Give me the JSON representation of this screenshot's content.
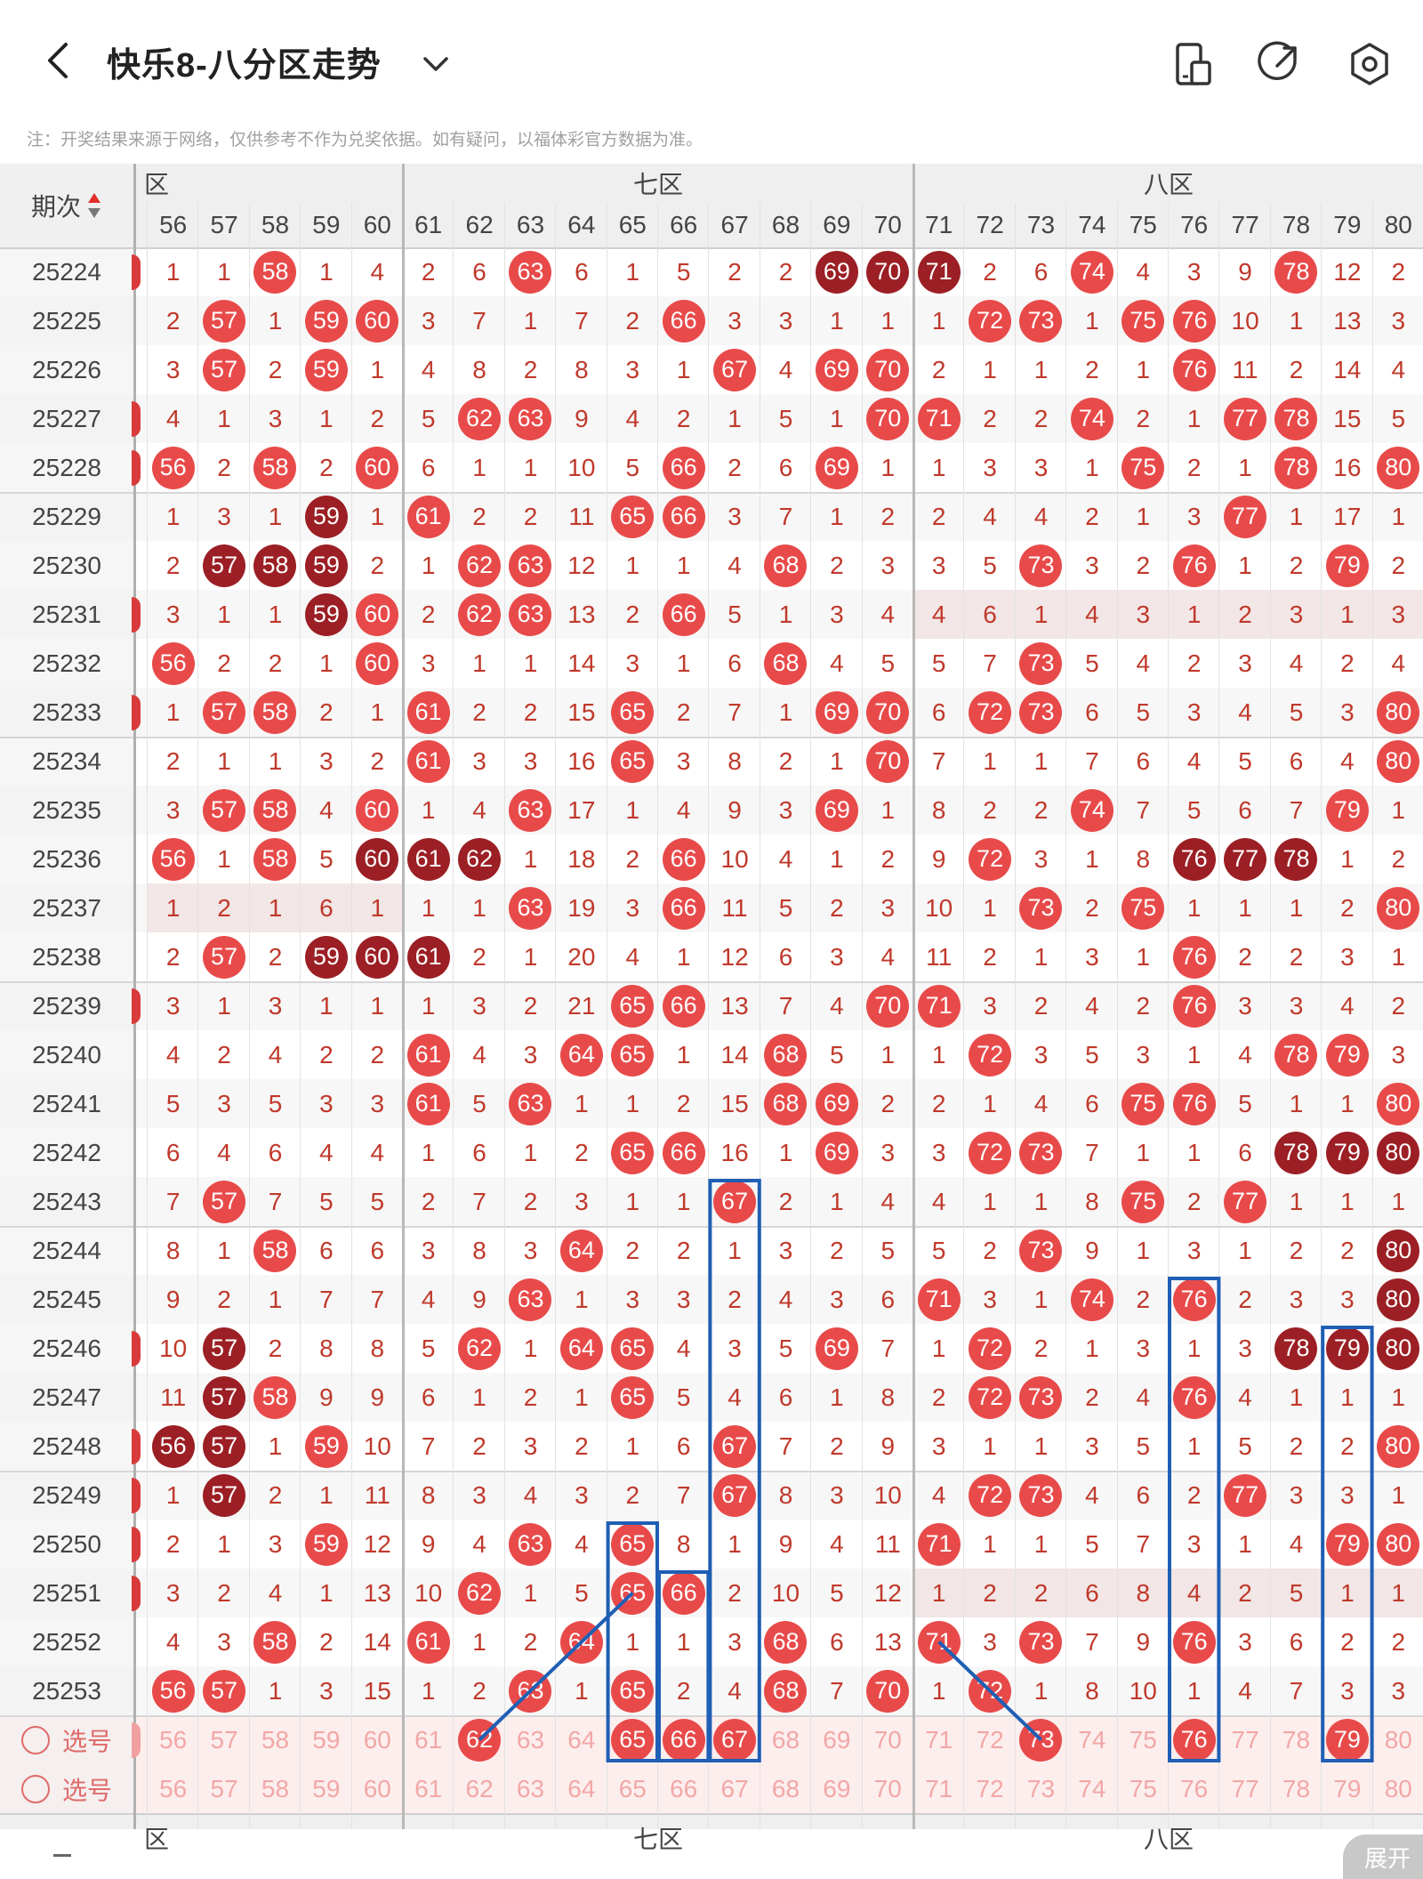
{
  "header": {
    "title": "快乐8-八分区走势"
  },
  "note": "注：开奖结果来源于网络，仅供参考不作为兑奖依据。如有疑问，以福体彩官方数据为准。",
  "table": {
    "issue_header": "期次",
    "zones": [
      {
        "label": "六区",
        "visible": "区"
      },
      {
        "label": "七区",
        "visible": "七区"
      },
      {
        "label": "八区",
        "visible": "八区"
      }
    ],
    "columns": [
      "56",
      "57",
      "58",
      "59",
      "60",
      "61",
      "62",
      "63",
      "64",
      "65",
      "66",
      "67",
      "68",
      "69",
      "70",
      "71",
      "72",
      "73",
      "74",
      "75",
      "76",
      "77",
      "78",
      "79",
      "80"
    ],
    "rows": [
      {
        "issue": "25224",
        "cells": [
          "1",
          "1",
          "b58",
          "1",
          "4",
          "2",
          "6",
          "b63",
          "6",
          "1",
          "5",
          "2",
          "2",
          "d69",
          "d70",
          "d71",
          "2",
          "6",
          "b74",
          "4",
          "3",
          "9",
          "b78",
          "12",
          "2"
        ]
      },
      {
        "issue": "25225",
        "cells": [
          "2",
          "b57",
          "1",
          "b59",
          "b60",
          "3",
          "7",
          "1",
          "7",
          "2",
          "b66",
          "3",
          "3",
          "1",
          "1",
          "1",
          "b72",
          "b73",
          "1",
          "b75",
          "b76",
          "10",
          "1",
          "13",
          "3"
        ]
      },
      {
        "issue": "25226",
        "cells": [
          "3",
          "b57",
          "2",
          "b59",
          "1",
          "4",
          "8",
          "2",
          "8",
          "3",
          "1",
          "b67",
          "4",
          "b69",
          "b70",
          "2",
          "1",
          "1",
          "2",
          "1",
          "b76",
          "11",
          "2",
          "14",
          "4"
        ]
      },
      {
        "issue": "25227",
        "cells": [
          "4",
          "1",
          "3",
          "1",
          "2",
          "5",
          "b62",
          "b63",
          "9",
          "4",
          "2",
          "1",
          "5",
          "1",
          "b70",
          "b71",
          "2",
          "2",
          "b74",
          "2",
          "1",
          "b77",
          "b78",
          "15",
          "5"
        ]
      },
      {
        "issue": "25228",
        "cells": [
          "b56",
          "2",
          "b58",
          "2",
          "b60",
          "6",
          "1",
          "1",
          "10",
          "5",
          "b66",
          "2",
          "6",
          "b69",
          "1",
          "1",
          "3",
          "3",
          "1",
          "b75",
          "2",
          "1",
          "b78",
          "16",
          "b80"
        ]
      },
      {
        "issue": "25229",
        "cells": [
          "1",
          "3",
          "1",
          "d59",
          "1",
          "b61",
          "2",
          "2",
          "11",
          "b65",
          "b66",
          "3",
          "7",
          "1",
          "2",
          "2",
          "4",
          "4",
          "2",
          "1",
          "3",
          "b77",
          "1",
          "17",
          "1"
        ]
      },
      {
        "issue": "25230",
        "cells": [
          "2",
          "d57",
          "d58",
          "d59",
          "2",
          "1",
          "b62",
          "b63",
          "12",
          "1",
          "1",
          "4",
          "b68",
          "2",
          "3",
          "3",
          "5",
          "b73",
          "3",
          "2",
          "b76",
          "1",
          "2",
          "b79",
          "2"
        ]
      },
      {
        "issue": "25231",
        "cells": [
          "3",
          "1",
          "1",
          "d59",
          "b60",
          "2",
          "b62",
          "b63",
          "13",
          "2",
          "b66",
          "5",
          "1",
          "3",
          "4",
          "4",
          "6",
          "1",
          "4",
          "3",
          "1",
          "2",
          "3",
          "1",
          "3"
        ]
      },
      {
        "issue": "25232",
        "cells": [
          "b56",
          "2",
          "2",
          "1",
          "b60",
          "3",
          "1",
          "1",
          "14",
          "3",
          "1",
          "6",
          "b68",
          "4",
          "5",
          "5",
          "7",
          "b73",
          "5",
          "4",
          "2",
          "3",
          "4",
          "2",
          "4"
        ]
      },
      {
        "issue": "25233",
        "cells": [
          "1",
          "b57",
          "b58",
          "2",
          "1",
          "b61",
          "2",
          "2",
          "15",
          "b65",
          "2",
          "7",
          "1",
          "b69",
          "b70",
          "6",
          "b72",
          "b73",
          "6",
          "5",
          "3",
          "4",
          "5",
          "3",
          "b80"
        ]
      },
      {
        "issue": "25234",
        "cells": [
          "2",
          "1",
          "1",
          "3",
          "2",
          "b61",
          "3",
          "3",
          "16",
          "b65",
          "3",
          "8",
          "2",
          "1",
          "b70",
          "7",
          "1",
          "1",
          "7",
          "6",
          "4",
          "5",
          "6",
          "4",
          "b80"
        ]
      },
      {
        "issue": "25235",
        "cells": [
          "3",
          "b57",
          "b58",
          "4",
          "b60",
          "1",
          "4",
          "b63",
          "17",
          "1",
          "4",
          "9",
          "3",
          "b69",
          "1",
          "8",
          "2",
          "2",
          "b74",
          "7",
          "5",
          "6",
          "7",
          "b79",
          "1"
        ]
      },
      {
        "issue": "25236",
        "cells": [
          "b56",
          "1",
          "b58",
          "5",
          "d60",
          "d61",
          "d62",
          "1",
          "18",
          "2",
          "b66",
          "10",
          "4",
          "1",
          "2",
          "9",
          "b72",
          "3",
          "1",
          "8",
          "d76",
          "d77",
          "d78",
          "1",
          "2"
        ]
      },
      {
        "issue": "25237",
        "cells": [
          "1",
          "2",
          "1",
          "6",
          "1",
          "1",
          "1",
          "b63",
          "19",
          "3",
          "b66",
          "11",
          "5",
          "2",
          "3",
          "10",
          "1",
          "b73",
          "2",
          "b75",
          "1",
          "1",
          "1",
          "2",
          "b80"
        ]
      },
      {
        "issue": "25238",
        "cells": [
          "2",
          "b57",
          "2",
          "d59",
          "d60",
          "d61",
          "2",
          "1",
          "20",
          "4",
          "1",
          "12",
          "6",
          "3",
          "4",
          "11",
          "2",
          "1",
          "3",
          "1",
          "b76",
          "2",
          "2",
          "3",
          "1"
        ]
      },
      {
        "issue": "25239",
        "cells": [
          "3",
          "1",
          "3",
          "1",
          "1",
          "1",
          "3",
          "2",
          "21",
          "b65",
          "b66",
          "13",
          "7",
          "4",
          "b70",
          "b71",
          "3",
          "2",
          "4",
          "2",
          "b76",
          "3",
          "3",
          "4",
          "2"
        ]
      },
      {
        "issue": "25240",
        "cells": [
          "4",
          "2",
          "4",
          "2",
          "2",
          "b61",
          "4",
          "3",
          "b64",
          "b65",
          "1",
          "14",
          "b68",
          "5",
          "1",
          "1",
          "b72",
          "3",
          "5",
          "3",
          "1",
          "4",
          "b78",
          "b79",
          "3"
        ]
      },
      {
        "issue": "25241",
        "cells": [
          "5",
          "3",
          "5",
          "3",
          "3",
          "b61",
          "5",
          "b63",
          "1",
          "1",
          "2",
          "15",
          "b68",
          "b69",
          "2",
          "2",
          "1",
          "4",
          "6",
          "b75",
          "b76",
          "5",
          "1",
          "1",
          "b80"
        ]
      },
      {
        "issue": "25242",
        "cells": [
          "6",
          "4",
          "6",
          "4",
          "4",
          "1",
          "6",
          "1",
          "2",
          "b65",
          "b66",
          "16",
          "1",
          "b69",
          "3",
          "3",
          "b72",
          "b73",
          "7",
          "1",
          "1",
          "6",
          "d78",
          "d79",
          "d80"
        ]
      },
      {
        "issue": "25243",
        "cells": [
          "7",
          "b57",
          "7",
          "5",
          "5",
          "2",
          "7",
          "2",
          "3",
          "1",
          "1",
          "b67",
          "2",
          "1",
          "4",
          "4",
          "1",
          "1",
          "8",
          "b75",
          "2",
          "b77",
          "1",
          "1",
          "1"
        ]
      },
      {
        "issue": "25244",
        "cells": [
          "8",
          "1",
          "b58",
          "6",
          "6",
          "3",
          "8",
          "3",
          "b64",
          "2",
          "2",
          "1",
          "3",
          "2",
          "5",
          "5",
          "2",
          "b73",
          "9",
          "1",
          "3",
          "1",
          "2",
          "2",
          "d80"
        ]
      },
      {
        "issue": "25245",
        "cells": [
          "9",
          "2",
          "1",
          "7",
          "7",
          "4",
          "9",
          "b63",
          "1",
          "3",
          "3",
          "2",
          "4",
          "3",
          "6",
          "b71",
          "3",
          "1",
          "b74",
          "2",
          "b76",
          "2",
          "3",
          "3",
          "d80"
        ]
      },
      {
        "issue": "25246",
        "cells": [
          "10",
          "d57",
          "2",
          "8",
          "8",
          "5",
          "b62",
          "1",
          "b64",
          "b65",
          "4",
          "3",
          "5",
          "b69",
          "7",
          "1",
          "b72",
          "2",
          "1",
          "3",
          "1",
          "3",
          "d78",
          "d79",
          "d80"
        ]
      },
      {
        "issue": "25247",
        "cells": [
          "11",
          "d57",
          "b58",
          "9",
          "9",
          "6",
          "1",
          "2",
          "1",
          "b65",
          "5",
          "4",
          "6",
          "1",
          "8",
          "2",
          "b72",
          "b73",
          "2",
          "4",
          "b76",
          "4",
          "1",
          "1",
          "1"
        ]
      },
      {
        "issue": "25248",
        "cells": [
          "d56",
          "d57",
          "1",
          "b59",
          "10",
          "7",
          "2",
          "3",
          "2",
          "1",
          "6",
          "b67",
          "7",
          "2",
          "9",
          "3",
          "1",
          "1",
          "3",
          "5",
          "1",
          "5",
          "2",
          "2",
          "b80"
        ]
      },
      {
        "issue": "25249",
        "cells": [
          "1",
          "d57",
          "2",
          "1",
          "11",
          "8",
          "3",
          "4",
          "3",
          "2",
          "7",
          "b67",
          "8",
          "3",
          "10",
          "4",
          "b72",
          "b73",
          "4",
          "6",
          "2",
          "b77",
          "3",
          "3",
          "1"
        ]
      },
      {
        "issue": "25250",
        "cells": [
          "2",
          "1",
          "3",
          "b59",
          "12",
          "9",
          "4",
          "b63",
          "4",
          "b65",
          "8",
          "1",
          "9",
          "4",
          "11",
          "b71",
          "1",
          "1",
          "5",
          "7",
          "3",
          "1",
          "4",
          "b79",
          "b80"
        ]
      },
      {
        "issue": "25251",
        "cells": [
          "3",
          "2",
          "4",
          "1",
          "13",
          "10",
          "b62",
          "1",
          "5",
          "b65",
          "b66",
          "2",
          "10",
          "5",
          "12",
          "1",
          "2",
          "2",
          "6",
          "8",
          "4",
          "2",
          "5",
          "1",
          "1"
        ]
      },
      {
        "issue": "25252",
        "cells": [
          "4",
          "3",
          "b58",
          "2",
          "14",
          "b61",
          "1",
          "2",
          "b64",
          "1",
          "1",
          "3",
          "b68",
          "6",
          "13",
          "b71",
          "3",
          "b73",
          "7",
          "9",
          "b76",
          "3",
          "6",
          "2",
          "2"
        ]
      },
      {
        "issue": "25253",
        "cells": [
          "b56",
          "b57",
          "1",
          "3",
          "15",
          "1",
          "2",
          "b63",
          "1",
          "b65",
          "2",
          "4",
          "b68",
          "7",
          "b70",
          "1",
          "b72",
          "1",
          "8",
          "10",
          "1",
          "4",
          "7",
          "3",
          "3"
        ]
      }
    ],
    "select_rows": [
      {
        "label": "选号",
        "selected": [
          "62",
          "65",
          "66",
          "67",
          "73",
          "76",
          "79"
        ]
      },
      {
        "label": "选号",
        "selected": []
      }
    ]
  },
  "expand_label": "展开",
  "colors": {
    "ball_red": "#e84a4a",
    "ball_dark": "#9b1f24",
    "line_blue": "#1f5fb5",
    "num_text": "#c0392b"
  }
}
